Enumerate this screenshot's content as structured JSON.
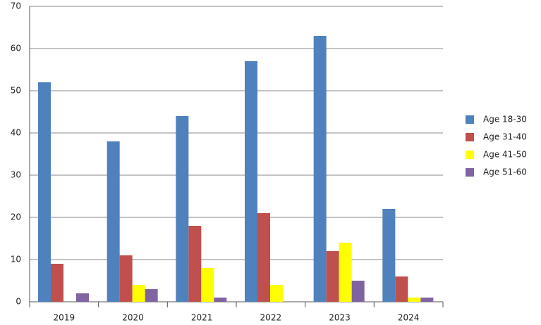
{
  "chart_data": {
    "type": "bar",
    "categories": [
      "2019",
      "2020",
      "2021",
      "2022",
      "2023",
      "2024"
    ],
    "series": [
      {
        "name": "Age 18-30",
        "color": "#4f81bd",
        "values": [
          52,
          38,
          44,
          57,
          63,
          22
        ]
      },
      {
        "name": "Age 31-40",
        "color": "#c0504d",
        "values": [
          9,
          11,
          18,
          21,
          12,
          6
        ]
      },
      {
        "name": "Age 41-50",
        "color": "#ffff00",
        "values": [
          0,
          4,
          8,
          4,
          14,
          1
        ]
      },
      {
        "name": "Age 51-60",
        "color": "#8064a2",
        "values": [
          2,
          3,
          1,
          0,
          5,
          1
        ]
      }
    ],
    "ylim": [
      0,
      70
    ],
    "yticks": [
      0,
      10,
      20,
      30,
      40,
      50,
      60,
      70
    ],
    "grid": true,
    "legend": "right"
  }
}
